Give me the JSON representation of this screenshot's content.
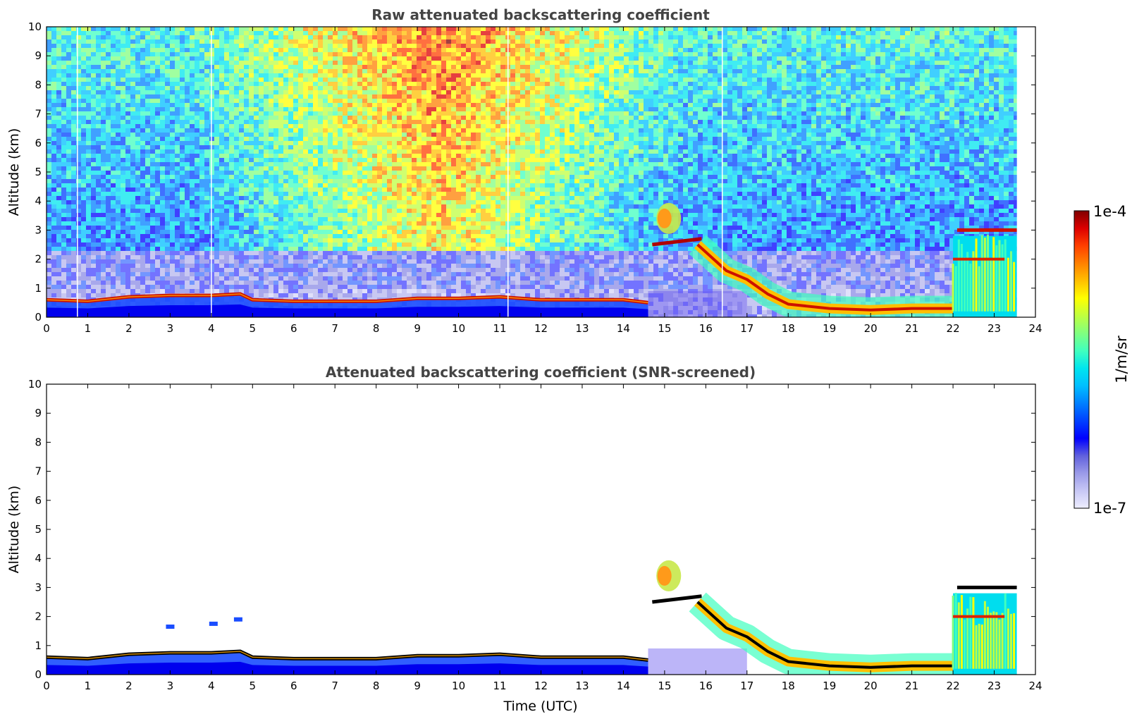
{
  "chart_data": [
    {
      "type": "heatmap",
      "title": "Raw attenuated backscattering coefficient",
      "xlabel": "",
      "ylabel": "Altitude (km)",
      "xlim": [
        0,
        24
      ],
      "ylim": [
        0,
        10
      ],
      "xticks": [
        "0",
        "1",
        "2",
        "3",
        "4",
        "5",
        "6",
        "7",
        "8",
        "9",
        "10",
        "11",
        "12",
        "13",
        "14",
        "15",
        "16",
        "17",
        "18",
        "19",
        "20",
        "21",
        "22",
        "23",
        "24"
      ],
      "yticks": [
        "0",
        "1",
        "2",
        "3",
        "4",
        "5",
        "6",
        "7",
        "8",
        "9",
        "10"
      ],
      "data_end_hour": 23.55,
      "boundary_layer_top_km": [
        [
          0,
          0.6
        ],
        [
          1,
          0.55
        ],
        [
          2,
          0.7
        ],
        [
          3,
          0.75
        ],
        [
          4,
          0.75
        ],
        [
          4.7,
          0.8
        ],
        [
          5,
          0.6
        ],
        [
          6,
          0.55
        ],
        [
          7,
          0.55
        ],
        [
          8,
          0.55
        ],
        [
          9,
          0.65
        ],
        [
          10,
          0.65
        ],
        [
          11,
          0.7
        ],
        [
          12,
          0.6
        ],
        [
          13,
          0.6
        ],
        [
          14,
          0.6
        ],
        [
          14.6,
          0.5
        ]
      ],
      "elevated_layers_km": [
        {
          "x_start": 14.7,
          "x_end": 15.9,
          "altitude": 2.5,
          "note": "dense layer"
        },
        {
          "x_start": 14.8,
          "x_end": 15.4,
          "altitude": 3.4,
          "note": "moderate layer"
        }
      ],
      "descending_layer_km": [
        [
          15.8,
          2.5
        ],
        [
          16.5,
          1.6
        ],
        [
          17,
          1.3
        ],
        [
          17.5,
          0.8
        ],
        [
          18,
          0.45
        ],
        [
          19,
          0.3
        ],
        [
          20,
          0.25
        ],
        [
          21,
          0.3
        ],
        [
          22,
          0.3
        ]
      ],
      "convective_region": {
        "x_start": 22.0,
        "x_end": 23.55,
        "top_km": 3.0
      },
      "colorbar": {
        "min": "1e-7",
        "max": "1e-4",
        "label": "1/m/sr",
        "scale": "log"
      }
    },
    {
      "type": "heatmap",
      "title": "Attenuated backscattering coefficient (SNR-screened)",
      "xlabel": "Time (UTC)",
      "ylabel": "Altitude (km)",
      "xlim": [
        0,
        24
      ],
      "ylim": [
        0,
        10
      ],
      "xticks": [
        "0",
        "1",
        "2",
        "3",
        "4",
        "5",
        "6",
        "7",
        "8",
        "9",
        "10",
        "11",
        "12",
        "13",
        "14",
        "15",
        "16",
        "17",
        "18",
        "19",
        "20",
        "21",
        "22",
        "23",
        "24"
      ],
      "yticks": [
        "0",
        "1",
        "2",
        "3",
        "4",
        "5",
        "6",
        "7",
        "8",
        "9",
        "10"
      ],
      "screened": true,
      "isolated_patches_km": [
        [
          2.95,
          1.65
        ],
        [
          4.0,
          1.75
        ],
        [
          4.6,
          1.9
        ]
      ]
    }
  ],
  "colorbar": {
    "max_label": "1e-4",
    "min_label": "1e-7",
    "unit_label": "1/m/sr",
    "colormap": "jet",
    "colors": [
      "#eeeeff",
      "#c7c7f5",
      "#9a9ae8",
      "#6161dd",
      "#0000ff",
      "#0040ff",
      "#0080ff",
      "#00bfff",
      "#00e5ee",
      "#40ffbf",
      "#80ff80",
      "#bfff40",
      "#ffff00",
      "#ffbf00",
      "#ff8000",
      "#ff4000",
      "#dd0000",
      "#800000"
    ]
  }
}
